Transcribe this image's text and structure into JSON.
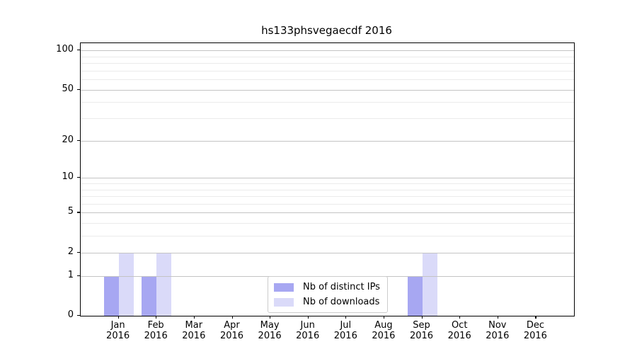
{
  "title": "hs133phsvegaecdf 2016",
  "chart_data": {
    "type": "bar",
    "title": "hs133phsvegaecdf 2016",
    "categories": [
      "Jan 2016",
      "Feb 2016",
      "Mar 2016",
      "Apr 2016",
      "May 2016",
      "Jun 2016",
      "Jul 2016",
      "Aug 2016",
      "Sep 2016",
      "Oct 2016",
      "Nov 2016",
      "Dec 2016"
    ],
    "months": [
      "Jan",
      "Feb",
      "Mar",
      "Apr",
      "May",
      "Jun",
      "Jul",
      "Aug",
      "Sep",
      "Oct",
      "Nov",
      "Dec"
    ],
    "year": "2016",
    "series": [
      {
        "name": "Nb of distinct IPs",
        "color": "#a7a7f2",
        "values": [
          1,
          1,
          0,
          0,
          0,
          0,
          0,
          0,
          1,
          0,
          0,
          0
        ]
      },
      {
        "name": "Nb of downloads",
        "color": "#dadaf9",
        "values": [
          2,
          2,
          0,
          0,
          0,
          0,
          0,
          0,
          2,
          0,
          0,
          0
        ]
      }
    ],
    "yscale": "log1p",
    "ylabel": "",
    "xlabel": "",
    "y_ticks": [
      0,
      1,
      2,
      5,
      10,
      20,
      50,
      100
    ],
    "y_minor_ticks": [
      3,
      4,
      6,
      7,
      8,
      9,
      30,
      40,
      60,
      70,
      80,
      90
    ],
    "ylim": [
      0,
      113
    ],
    "grid": "horizontal major and minor",
    "legend_position": "lower center"
  },
  "colors": {
    "background": "#ffffff",
    "axis": "#000000",
    "major_grid": "#c4c4c4",
    "minor_grid": "#ebebeb",
    "legend_border": "#cccccc"
  }
}
